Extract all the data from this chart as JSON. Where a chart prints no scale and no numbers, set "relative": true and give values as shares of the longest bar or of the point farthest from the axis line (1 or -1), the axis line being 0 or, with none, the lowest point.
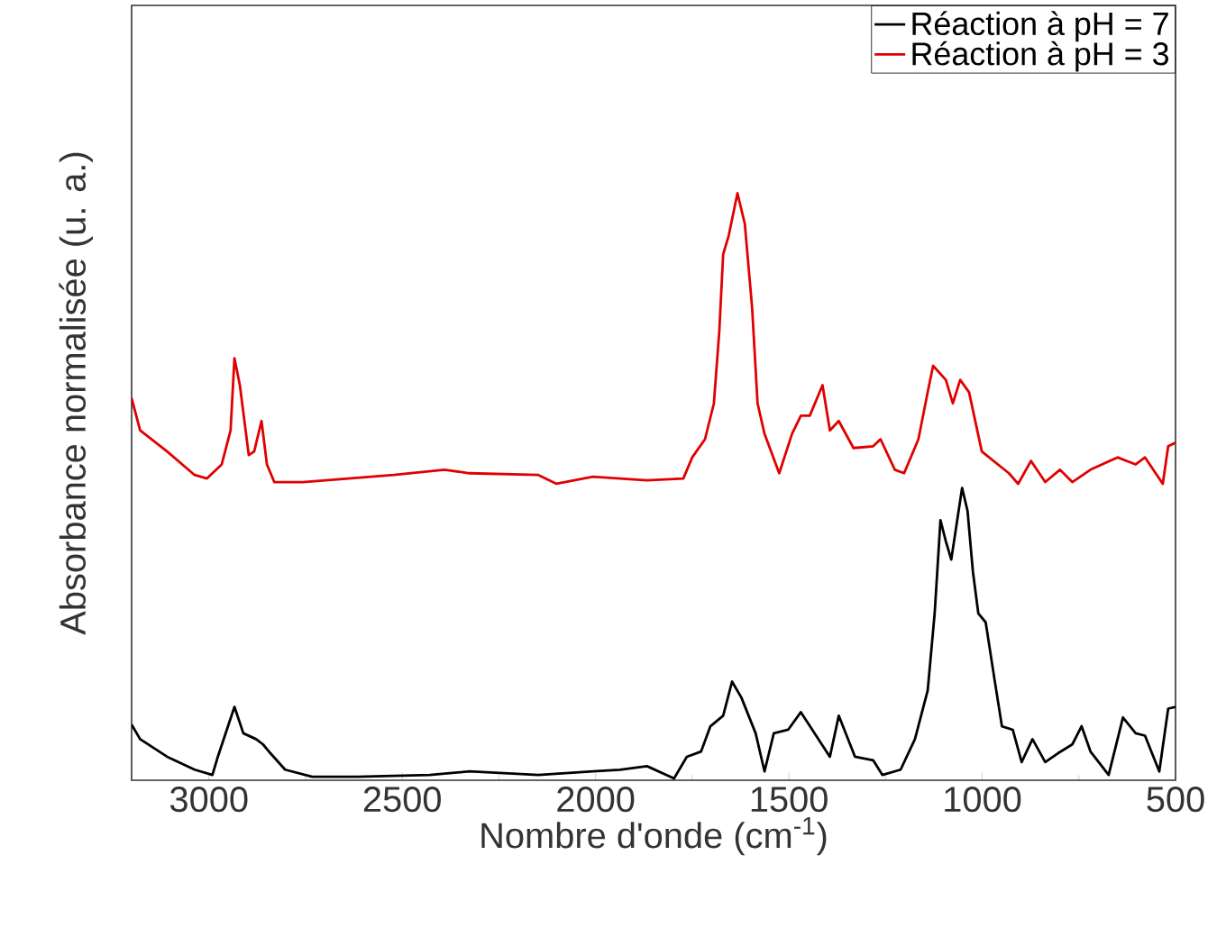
{
  "chart_data": {
    "type": "line",
    "xlabel": "Nombre d'onde (cm$^{-1}$)",
    "ylabel": "Absorbance normalisée (u. a.)",
    "relative": true,
    "legend": "top right",
    "xlim": [
      3200,
      500
    ],
    "xticks": [
      3000,
      2500,
      2000,
      1500,
      1000,
      500
    ],
    "series": [
      {
        "name": "Réaction à pH = 7",
        "color": "#000000",
        "x": [
          3200,
          3178,
          3108,
          3037,
          2991,
          2977,
          2934,
          2911,
          2878,
          2860,
          2841,
          2803,
          2733,
          2616,
          2429,
          2326,
          2148,
          2007,
          1937,
          1867,
          1797,
          1764,
          1727,
          1703,
          1670,
          1647,
          1623,
          1586,
          1563,
          1539,
          1502,
          1469,
          1394,
          1371,
          1329,
          1282,
          1258,
          1211,
          1174,
          1141,
          1123,
          1108,
          1094,
          1080,
          1066,
          1052,
          1038,
          1024,
          1010,
          991,
          968,
          949,
          921,
          898,
          870,
          837,
          804,
          767,
          743,
          720,
          673,
          636,
          603,
          579,
          542,
          519,
          500
        ],
        "values": [
          0.095,
          0.07,
          0.04,
          0.018,
          0.009,
          0.04,
          0.125,
          0.08,
          0.07,
          0.061,
          0.046,
          0.018,
          0.006,
          0.006,
          0.009,
          0.015,
          0.009,
          0.015,
          0.018,
          0.024,
          0.003,
          0.04,
          0.049,
          0.092,
          0.11,
          0.168,
          0.141,
          0.08,
          0.015,
          0.08,
          0.086,
          0.116,
          0.04,
          0.11,
          0.04,
          0.034,
          0.009,
          0.018,
          0.07,
          0.153,
          0.284,
          0.443,
          0.407,
          0.376,
          0.437,
          0.498,
          0.459,
          0.355,
          0.284,
          0.269,
          0.171,
          0.092,
          0.086,
          0.031,
          0.07,
          0.031,
          0.046,
          0.061,
          0.092,
          0.049,
          0.009,
          0.107,
          0.08,
          0.076,
          0.015,
          0.122,
          0.125
        ]
      },
      {
        "name": "Réaction à pH = 3",
        "color": "#e00000",
        "x": [
          3200,
          3178,
          3108,
          3037,
          3005,
          2967,
          2944,
          2934,
          2920,
          2897,
          2883,
          2864,
          2850,
          2831,
          2757,
          2522,
          2391,
          2326,
          2148,
          2101,
          2007,
          1867,
          1773,
          1750,
          1717,
          1694,
          1680,
          1670,
          1656,
          1633,
          1614,
          1595,
          1581,
          1563,
          1525,
          1492,
          1469,
          1446,
          1413,
          1394,
          1371,
          1333,
          1282,
          1263,
          1226,
          1202,
          1165,
          1141,
          1127,
          1094,
          1076,
          1057,
          1034,
          1001,
          931,
          907,
          874,
          837,
          799,
          767,
          720,
          650,
          603,
          579,
          533,
          519,
          500
        ],
        "values": [
          0.651,
          0.596,
          0.56,
          0.52,
          0.514,
          0.538,
          0.596,
          0.719,
          0.673,
          0.554,
          0.56,
          0.612,
          0.538,
          0.508,
          0.508,
          0.52,
          0.529,
          0.523,
          0.52,
          0.505,
          0.517,
          0.511,
          0.514,
          0.55,
          0.581,
          0.642,
          0.765,
          0.896,
          0.927,
          1.0,
          0.948,
          0.804,
          0.642,
          0.59,
          0.523,
          0.59,
          0.621,
          0.621,
          0.673,
          0.596,
          0.612,
          0.566,
          0.569,
          0.581,
          0.529,
          0.523,
          0.581,
          0.661,
          0.706,
          0.682,
          0.642,
          0.682,
          0.661,
          0.56,
          0.523,
          0.505,
          0.544,
          0.508,
          0.529,
          0.508,
          0.529,
          0.55,
          0.538,
          0.55,
          0.505,
          0.569,
          0.575
        ]
      }
    ]
  }
}
